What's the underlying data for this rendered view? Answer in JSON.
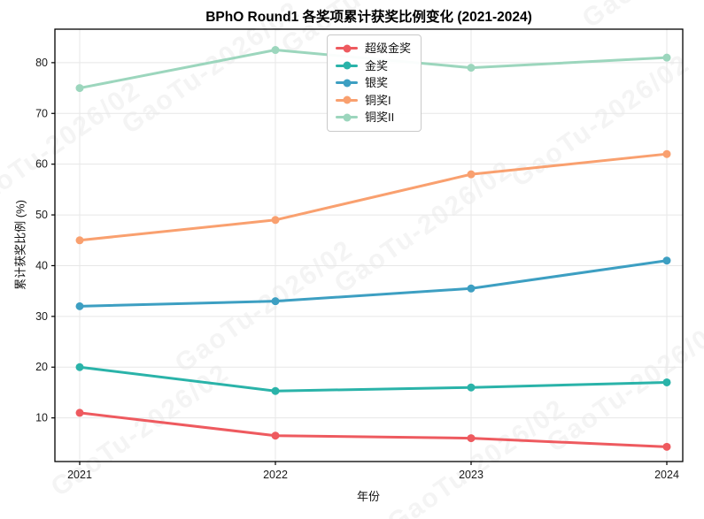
{
  "watermark": {
    "text": "GaoTu-2026/02"
  },
  "chart_data": {
    "type": "line",
    "title": "BPhO Round1 各奖项累计获奖比例变化 (2021-2024)",
    "xlabel": "年份",
    "ylabel": "累计获奖比例 (%)",
    "categories": [
      "2021",
      "2022",
      "2023",
      "2024"
    ],
    "series": [
      {
        "name": "超级金奖",
        "color": "#ee5a5f",
        "values": [
          11,
          6.5,
          6,
          4.3
        ]
      },
      {
        "name": "金奖",
        "color": "#2ab3a9",
        "values": [
          20,
          15.3,
          16,
          17
        ]
      },
      {
        "name": "银奖",
        "color": "#3d9fc2",
        "values": [
          32,
          33,
          35.5,
          41
        ]
      },
      {
        "name": "铜奖I",
        "color": "#f9a06f",
        "values": [
          45,
          49,
          58,
          62
        ]
      },
      {
        "name": "铜奖II",
        "color": "#9cd6bd",
        "values": [
          75,
          82.5,
          79,
          81
        ]
      }
    ],
    "ylim": [
      1.4,
      86.6
    ],
    "yticks": [
      10,
      20,
      30,
      40,
      50,
      60,
      70,
      80
    ],
    "grid": true,
    "legend_position": "upper center",
    "axis_color": "#000000",
    "grid_color": "#e7e7e7",
    "tick_label_color": "#1a1a1a"
  }
}
